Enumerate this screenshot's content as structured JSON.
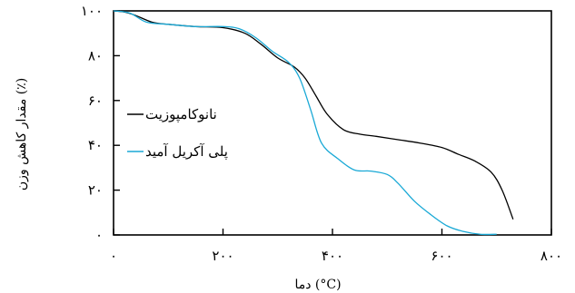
{
  "chart_data": {
    "type": "line",
    "xlabel": "دما (°C)",
    "ylabel": "مقدار کاهش وزن (٪)",
    "xlim": [
      0,
      800
    ],
    "ylim": [
      0,
      100
    ],
    "x_ticks": [
      0,
      200,
      400,
      600,
      800
    ],
    "x_tick_labels": [
      "۰",
      "۲۰۰",
      "۴۰۰",
      "۶۰۰",
      "۸۰۰"
    ],
    "y_ticks": [
      0,
      20,
      40,
      60,
      80,
      100
    ],
    "y_tick_labels": [
      "۰",
      "۲۰",
      "۴۰",
      "۶۰",
      "۸۰",
      "۱۰۰"
    ],
    "grid": false,
    "legend_position": "center-left",
    "series": [
      {
        "name": "نانوکامپوزیت",
        "color": "#000000",
        "x": [
          0,
          20,
          40,
          70,
          100,
          150,
          200,
          240,
          270,
          300,
          330,
          350,
          370,
          390,
          420,
          450,
          480,
          520,
          560,
          600,
          630,
          660,
          690,
          710,
          730
        ],
        "y": [
          100,
          99.5,
          98,
          95,
          94,
          93,
          92.5,
          90,
          85,
          79,
          75,
          70,
          62,
          54,
          47,
          45,
          44,
          42.5,
          41,
          39,
          36,
          33,
          28,
          20,
          7
        ]
      },
      {
        "name": "پلی آکریل آمید",
        "color": "#1aa9d6",
        "x": [
          0,
          30,
          60,
          100,
          150,
          200,
          230,
          260,
          290,
          320,
          340,
          360,
          380,
          410,
          440,
          470,
          500,
          520,
          550,
          580,
          610,
          640,
          670,
          700
        ],
        "y": [
          100,
          99,
          95,
          94,
          93,
          93,
          92,
          88,
          82,
          77,
          70,
          56,
          41,
          34,
          29,
          28.5,
          27,
          23,
          15,
          9,
          4,
          1.5,
          0.3,
          0.3
        ]
      }
    ]
  }
}
